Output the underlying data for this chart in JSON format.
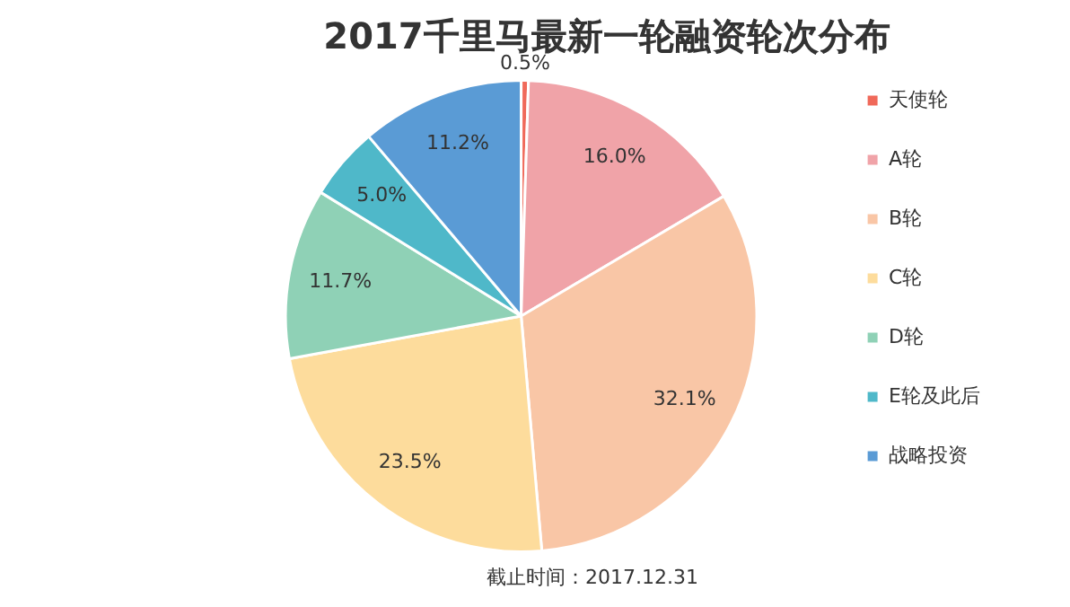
{
  "chart_data": {
    "type": "pie",
    "title": "2017千里马最新一轮融资轮次分布",
    "categories": [
      "天使轮",
      "A轮",
      "B轮",
      "C轮",
      "D轮",
      "E轮及此后",
      "战略投资"
    ],
    "values": [
      0.5,
      16.0,
      32.1,
      23.5,
      11.7,
      5.0,
      11.2
    ],
    "colors": [
      "#f0695a",
      "#f0a3a8",
      "#f9c6a6",
      "#fddc9c",
      "#8fd1b6",
      "#4fb8c9",
      "#5a9bd5"
    ],
    "value_labels": [
      "0.5%",
      "16.0%",
      "32.1%",
      "23.5%",
      "11.7%",
      "5.0%",
      "11.2%"
    ],
    "legend": "right",
    "annotations": [
      "截止时间：2017.12.31"
    ]
  }
}
